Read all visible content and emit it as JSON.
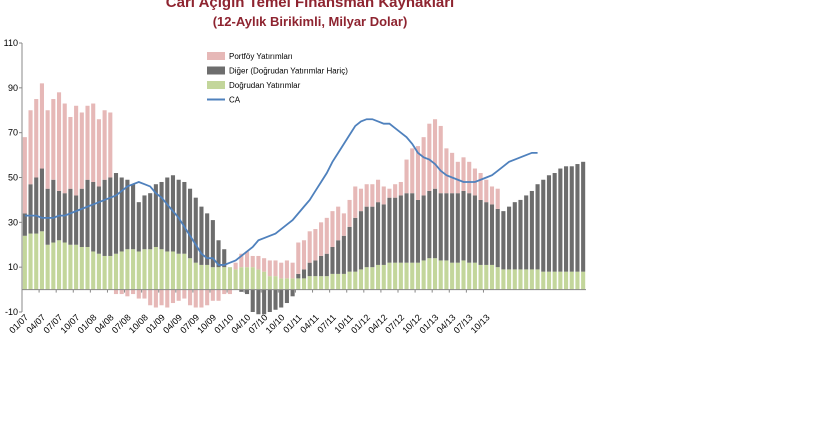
{
  "chart_data": {
    "type": "bar",
    "title": "Cari Açığın Temel Finansman Kaynakları",
    "subtitle": "(12-Aylık Birikimli, Milyar Dolar)",
    "xlabel": "",
    "ylabel": "",
    "ylim": [
      -10,
      110
    ],
    "yticks": [
      "110",
      "90",
      "70",
      "50",
      "30",
      "10",
      "-10"
    ],
    "ytick_values": [
      110,
      90,
      70,
      50,
      30,
      10,
      -10
    ],
    "xtick_labels": [
      "01/07",
      "04/07",
      "07/07",
      "10/07",
      "01/08",
      "04/08",
      "07/08",
      "10/08",
      "01/09",
      "04/09",
      "07/09",
      "10/09",
      "01/10",
      "04/10",
      "07/10",
      "10/10",
      "01/11",
      "04/11",
      "07/11",
      "10/11",
      "01/12",
      "04/12",
      "07/12",
      "10/12",
      "01/13",
      "04/13",
      "07/13",
      "10/13"
    ],
    "legend_position": "top-center",
    "colors": {
      "portfoy": "#e6b8b7",
      "diger": "#6d6d6d",
      "dogrudan": "#c3d69b",
      "ca": "#4f81bd"
    },
    "series": [
      {
        "name": "Portföy Yatırımları",
        "values": [
          34,
          33,
          35,
          38,
          35,
          36,
          44,
          40,
          32,
          40,
          34,
          33,
          35,
          30,
          31,
          29,
          -2,
          -2,
          -3,
          -2,
          -4,
          -4,
          -7,
          -8,
          -7,
          -8,
          -6,
          -5,
          -4,
          -7,
          -8,
          -8,
          -7,
          -5,
          -5,
          -2,
          -2,
          3,
          6,
          7,
          5,
          6,
          6,
          7,
          7,
          7,
          8,
          7,
          14,
          13,
          14,
          14,
          15,
          16,
          16,
          15,
          10,
          12,
          14,
          10,
          10,
          10,
          10,
          8,
          4,
          6,
          6,
          15,
          20,
          24,
          26,
          30,
          31,
          30,
          20,
          18,
          14,
          15,
          14,
          12,
          12,
          10,
          8,
          9
        ]
      },
      {
        "name": "Diğer (Doğrudan Yatırımlar Hariç)",
        "values": [
          10,
          22,
          25,
          28,
          25,
          28,
          22,
          22,
          25,
          22,
          26,
          30,
          31,
          30,
          34,
          35,
          36,
          33,
          31,
          29,
          22,
          24,
          25,
          28,
          30,
          33,
          34,
          33,
          32,
          31,
          29,
          26,
          23,
          21,
          12,
          8,
          0,
          0,
          -1,
          -2,
          -10,
          -11,
          -11,
          -10,
          -9,
          -8,
          -6,
          -3,
          2,
          4,
          6,
          7,
          9,
          10,
          12,
          15,
          17,
          20,
          24,
          26,
          27,
          27,
          28,
          27,
          29,
          29,
          30,
          31,
          31,
          28,
          29,
          30,
          31,
          30,
          30,
          31,
          31,
          31,
          31,
          30,
          29,
          28,
          27,
          26,
          26,
          28,
          30,
          31,
          33,
          35,
          38,
          41,
          43,
          44,
          46,
          47,
          47,
          48,
          49,
          49,
          50
        ]
      },
      {
        "name": "Doğrudan Yatırımlar",
        "values": [
          24,
          25,
          25,
          26,
          20,
          21,
          22,
          21,
          20,
          20,
          19,
          19,
          17,
          16,
          15,
          15,
          16,
          17,
          18,
          18,
          17,
          18,
          18,
          19,
          18,
          17,
          17,
          16,
          16,
          14,
          12,
          11,
          11,
          10,
          10,
          10,
          10,
          9,
          10,
          10,
          10,
          9,
          8,
          6,
          6,
          5,
          5,
          5,
          5,
          5,
          6,
          6,
          6,
          6,
          7,
          7,
          7,
          8,
          8,
          9,
          10,
          10,
          11,
          11,
          12,
          12,
          12,
          12,
          12,
          12,
          13,
          14,
          14,
          13,
          13,
          12,
          12,
          13,
          12,
          12,
          11,
          11,
          11,
          10,
          9,
          9,
          9,
          9,
          9,
          9,
          9,
          8,
          8,
          8,
          8,
          8,
          8,
          8,
          8
        ]
      },
      {
        "name": "CA",
        "values": [
          33,
          33,
          33,
          32,
          32,
          32,
          33,
          33,
          34,
          35,
          36,
          37,
          38,
          39,
          40,
          41,
          42,
          44,
          46,
          47,
          48,
          47,
          46,
          43,
          41,
          38,
          35,
          32,
          28,
          24,
          20,
          16,
          14,
          14,
          11,
          11,
          12,
          13,
          15,
          17,
          19,
          22,
          23,
          24,
          25,
          27,
          29,
          31,
          34,
          37,
          40,
          44,
          48,
          52,
          57,
          61,
          65,
          69,
          73,
          75,
          76,
          76,
          75,
          74,
          74,
          72,
          70,
          68,
          65,
          61,
          59,
          58,
          56,
          53,
          51,
          50,
          49,
          48,
          48,
          48,
          49,
          50,
          51,
          53,
          55,
          57,
          58,
          59,
          60,
          61,
          61
        ]
      }
    ]
  }
}
